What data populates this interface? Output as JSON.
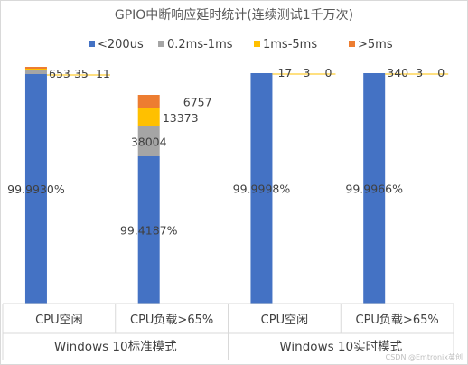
{
  "colors": {
    "series": [
      "#4472C4",
      "#A5A5A5",
      "#FFC000",
      "#ED7D31"
    ],
    "frame": "#d9d9d9",
    "text": "#404040"
  },
  "chart_data": {
    "type": "bar",
    "title": "GPIO中断响应延时统计(连续测试1千万次)",
    "legend_position": "top-right",
    "grid": false,
    "stacked": true,
    "groups": [
      "Windows 10标准模式",
      "Windows 10实时模式"
    ],
    "categories": [
      "CPU空闲",
      "CPU负载>65%",
      "CPU空闲",
      "CPU负载>65%"
    ],
    "series": [
      {
        "name": "<200us",
        "values": [
          9999347,
          9941870,
          9999980,
          9999660
        ]
      },
      {
        "name": "0.2ms-1ms",
        "values": [
          653,
          38004,
          17,
          340
        ]
      },
      {
        "name": "1ms-5ms",
        "values": [
          35,
          13373,
          3,
          3
        ]
      },
      {
        "name": ">5ms",
        "values": [
          11,
          6757,
          0,
          0
        ]
      }
    ],
    "value_labels": [
      [
        "99.9930%",
        "653",
        "35",
        "11"
      ],
      [
        "99.4187%",
        "38004",
        "13373",
        "6757"
      ],
      [
        "99.9998%",
        "17",
        "3",
        "0"
      ],
      [
        "99.9966%",
        "340",
        "3",
        "0"
      ]
    ]
  },
  "watermark": "CSDN @Emtronix英创"
}
